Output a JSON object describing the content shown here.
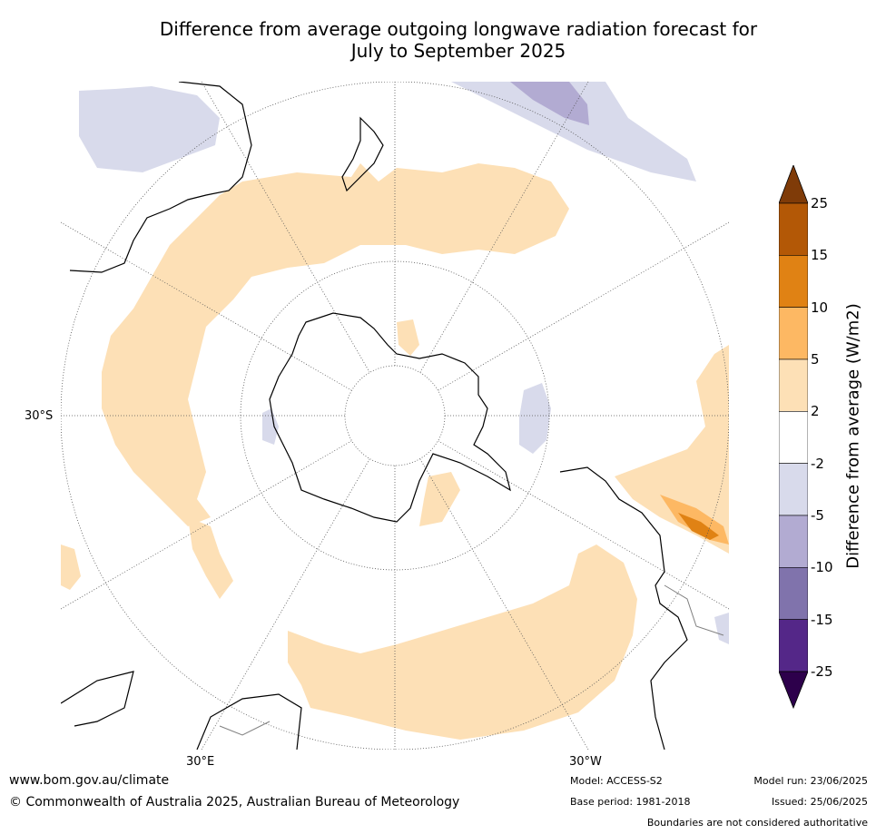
{
  "title": {
    "line1": "Difference from average outgoing longwave radiation forecast for",
    "line2": "July to September 2025"
  },
  "map": {
    "projection": "south polar stereographic",
    "lat_label": "30°S",
    "lon_labels": [
      "30°E",
      "30°W"
    ],
    "colors": {
      "land_outline": "#000000",
      "border": "#808080",
      "graticule": "#555555",
      "pos_2_5": "#fde0b6",
      "pos_5_10": "#fdb863",
      "pos_10_15": "#e08214",
      "pos_15_25": "#b35806",
      "neg_2_5": "#d8daeb",
      "neg_5_10": "#b2abd2",
      "neg_10_15": "#8073ac",
      "neg_15_25": "#542788"
    }
  },
  "colorbar": {
    "title": "Difference from average (W/m2)",
    "ticks": [
      "25",
      "15",
      "10",
      "5",
      "2",
      "-2",
      "-5",
      "-10",
      "-15",
      "-25"
    ],
    "colors": [
      "#b35806",
      "#e08214",
      "#fdb863",
      "#fde0b6",
      "#ffffff",
      "#d8daeb",
      "#b2abd2",
      "#8073ac",
      "#542788"
    ],
    "over_color": "#7f3b08",
    "under_color": "#2d004b"
  },
  "footer": {
    "website": "www.bom.gov.au/climate",
    "copyright": "© Commonwealth of Australia 2025, Australian Bureau of Meteorology",
    "model": "Model: ACCESS-S2",
    "base_period": "Base period: 1981-2018",
    "model_run": "Model run: 23/06/2025",
    "issued": "Issued: 25/06/2025",
    "disclaimer": "Boundaries are not considered authoritative"
  }
}
